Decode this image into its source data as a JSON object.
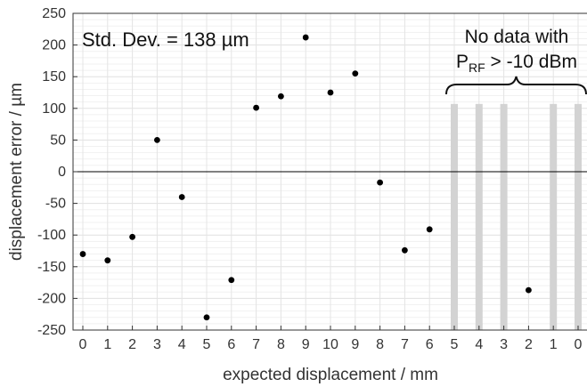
{
  "chart_data": {
    "type": "scatter",
    "xlabel": "expected displacement / mm",
    "ylabel": "displacement error / µm",
    "x_tick_labels": [
      "0",
      "1",
      "2",
      "3",
      "4",
      "5",
      "6",
      "7",
      "8",
      "9",
      "10",
      "9",
      "8",
      "7",
      "6",
      "5",
      "4",
      "3",
      "2",
      "1",
      "0"
    ],
    "ylim": [
      -250,
      250
    ],
    "y_ticks": [
      -250,
      -200,
      -150,
      -100,
      -50,
      0,
      50,
      100,
      150,
      200,
      250
    ],
    "grid": true,
    "zero_line": true,
    "points": [
      {
        "x_index": 0,
        "y": -130
      },
      {
        "x_index": 1,
        "y": -140
      },
      {
        "x_index": 2,
        "y": -103
      },
      {
        "x_index": 3,
        "y": 50
      },
      {
        "x_index": 4,
        "y": -40
      },
      {
        "x_index": 5,
        "y": -230
      },
      {
        "x_index": 6,
        "y": -171
      },
      {
        "x_index": 7,
        "y": 101
      },
      {
        "x_index": 8,
        "y": 119
      },
      {
        "x_index": 9,
        "y": 212
      },
      {
        "x_index": 10,
        "y": 125
      },
      {
        "x_index": 11,
        "y": 155
      },
      {
        "x_index": 12,
        "y": -17
      },
      {
        "x_index": 13,
        "y": -124
      },
      {
        "x_index": 14,
        "y": -91
      },
      {
        "x_index": 18,
        "y": -187
      }
    ],
    "no_data_bars": {
      "x_indices": [
        15,
        16,
        17,
        19,
        20
      ],
      "y_range": [
        -250,
        107
      ],
      "color": "#d3d3d3"
    },
    "annotations": {
      "std_dev": "Std. Dev. = 138 µm",
      "no_data_line1": "No data with",
      "no_data_p": "P",
      "no_data_sub": "RF",
      "no_data_tail": " > -10 dBm"
    },
    "colors": {
      "points": "#000000",
      "grid": "#e4e4e4",
      "axis": "#333333"
    }
  }
}
